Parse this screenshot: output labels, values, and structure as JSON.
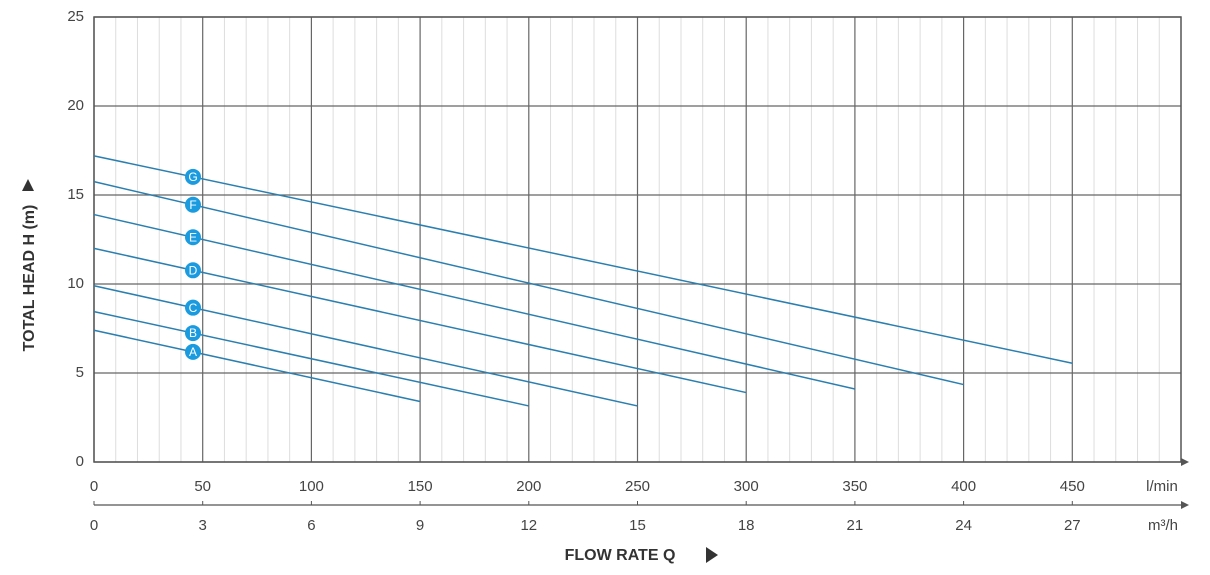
{
  "chart_data": {
    "type": "line",
    "y_label": "TOTAL HEAD H (m)",
    "x_label": "FLOW RATE Q",
    "x_unit": "l/min",
    "x2_unit": "m³/h",
    "xlim": [
      0,
      500
    ],
    "xticks": [
      0,
      50,
      100,
      150,
      200,
      250,
      300,
      350,
      400,
      450
    ],
    "xminorticks": [
      10,
      20,
      30,
      40,
      60,
      70,
      80,
      90,
      110,
      120,
      130,
      140,
      160,
      170,
      180,
      190,
      210,
      220,
      230,
      240,
      260,
      270,
      280,
      290,
      310,
      320,
      330,
      340,
      360,
      370,
      380,
      390,
      410,
      420,
      430,
      440,
      460,
      470,
      480,
      490
    ],
    "x2lim": [
      0,
      30
    ],
    "x2ticks": [
      0,
      3,
      6,
      9,
      12,
      15,
      18,
      21,
      24,
      27
    ],
    "ylim": [
      0,
      25
    ],
    "yticks": [
      0,
      5,
      10,
      15,
      20,
      25
    ],
    "grid": true,
    "series": [
      {
        "name": "A",
        "color": "#2a7fb0",
        "x": [
          0,
          150
        ],
        "values": [
          7.4,
          3.4
        ]
      },
      {
        "name": "B",
        "color": "#2a7fb0",
        "x": [
          0,
          200
        ],
        "values": [
          8.45,
          3.15
        ]
      },
      {
        "name": "C",
        "color": "#2a7fb0",
        "x": [
          0,
          250
        ],
        "values": [
          9.9,
          3.15
        ]
      },
      {
        "name": "D",
        "color": "#2a7fb0",
        "x": [
          0,
          300
        ],
        "values": [
          12.0,
          3.9
        ]
      },
      {
        "name": "E",
        "color": "#2a7fb0",
        "x": [
          0,
          350
        ],
        "values": [
          13.9,
          4.1
        ]
      },
      {
        "name": "F",
        "color": "#2a7fb0",
        "x": [
          0,
          400
        ],
        "values": [
          15.75,
          4.35
        ]
      },
      {
        "name": "G",
        "color": "#2a7fb0",
        "x": [
          0,
          450
        ],
        "values": [
          17.2,
          5.55
        ]
      }
    ]
  }
}
